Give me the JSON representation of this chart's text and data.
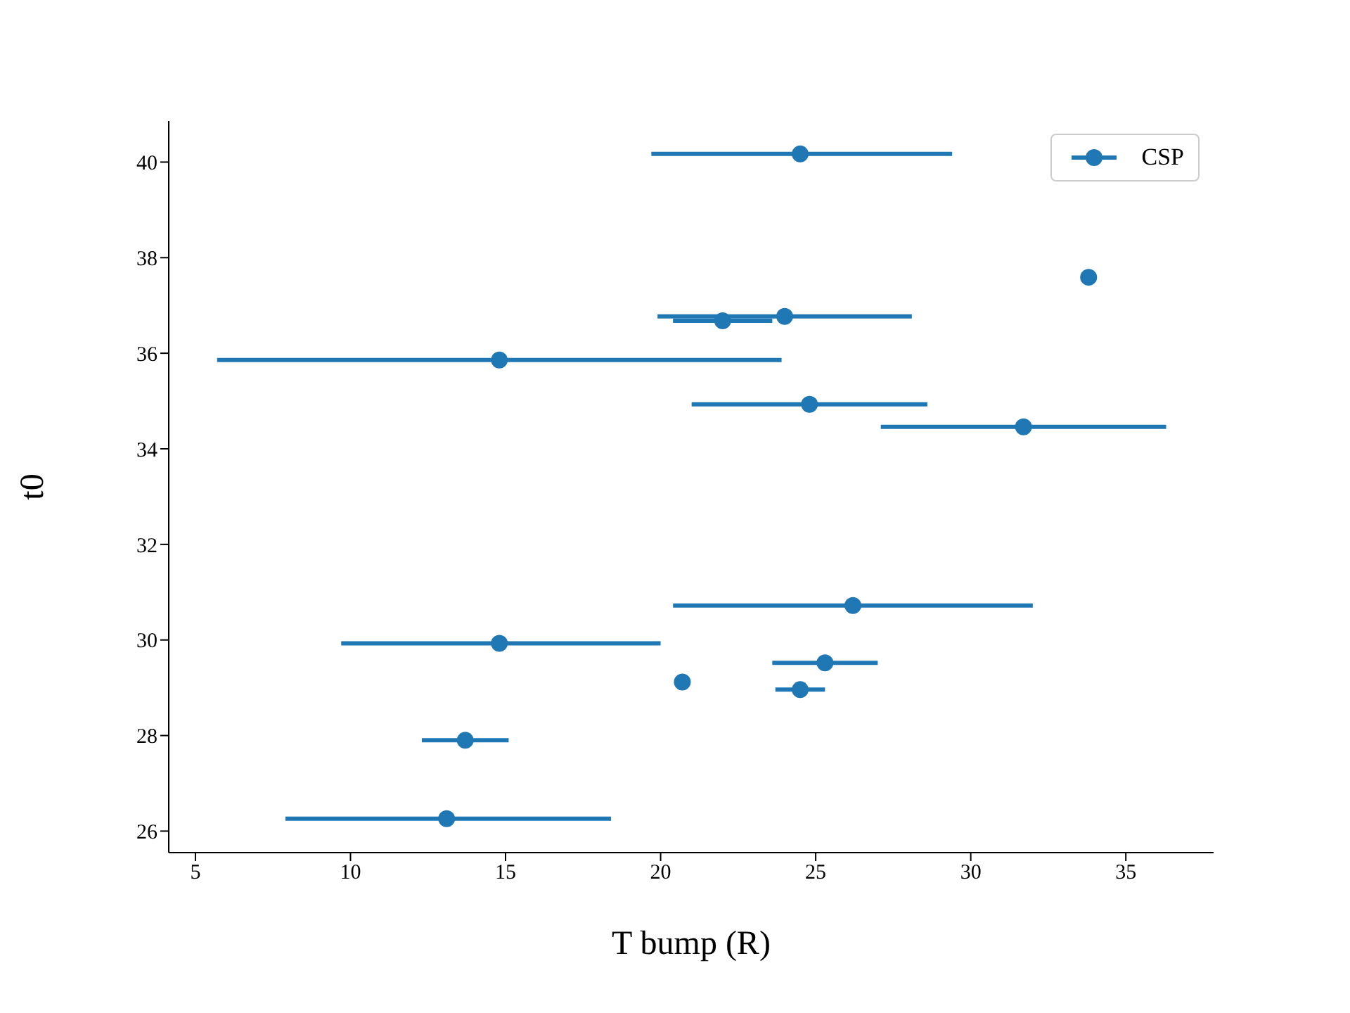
{
  "chart_data": {
    "type": "scatter",
    "xlabel": "T bump (R)",
    "ylabel": "t0",
    "x": [
      24.5,
      33.8,
      24.0,
      22.0,
      14.8,
      24.8,
      31.7,
      26.2,
      14.8,
      25.3,
      20.7,
      24.5,
      13.7,
      13.1
    ],
    "series": [
      {
        "name": "CSP",
        "color": "#1f77b4",
        "values": [
          40.17,
          37.59,
          36.77,
          36.68,
          35.86,
          34.93,
          34.46,
          30.72,
          29.93,
          29.52,
          29.12,
          28.96,
          27.9,
          26.26
        ],
        "xerrors": [
          [
            19.7,
            29.4
          ],
          null,
          [
            19.9,
            28.1
          ],
          [
            20.4,
            23.6
          ],
          [
            5.7,
            23.9
          ],
          [
            21.0,
            28.6
          ],
          [
            27.1,
            36.3
          ],
          [
            20.4,
            32.0
          ],
          [
            9.7,
            20.0
          ],
          [
            23.6,
            27.0
          ],
          null,
          [
            23.7,
            25.3
          ],
          [
            12.3,
            15.1
          ],
          [
            7.9,
            18.4
          ]
        ]
      }
    ],
    "xlim": [
      4.14,
      37.83
    ],
    "ylim": [
      25.55,
      40.86
    ],
    "xticks": [
      5,
      10,
      15,
      20,
      25,
      30,
      35
    ],
    "yticks": [
      26,
      28,
      30,
      32,
      34,
      36,
      38,
      40
    ],
    "marker": "circle",
    "grid": false,
    "legend": "top right"
  }
}
